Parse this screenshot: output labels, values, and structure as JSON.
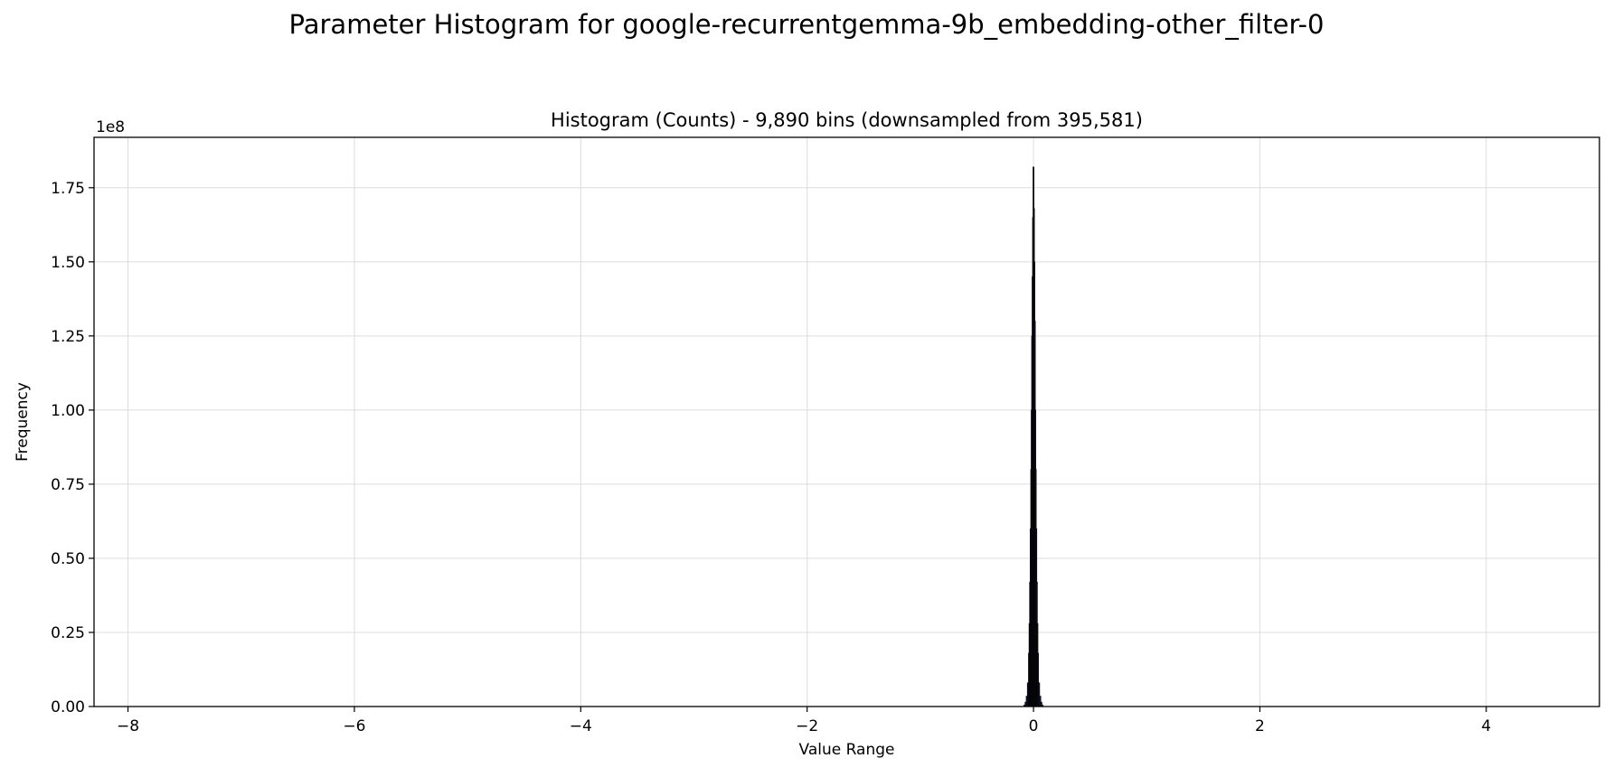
{
  "figure": {
    "title": "Parameter Histogram for google-recurrentgemma-9b_embedding-other_filter-0"
  },
  "chart_data": {
    "type": "bar",
    "title": "Histogram (Counts) - 9,890 bins (downsampled from 395,581)",
    "xlabel": "Value Range",
    "ylabel": "Frequency",
    "y_multiplier_label": "1e8",
    "xlim": [
      -8.3,
      5.0
    ],
    "ylim": [
      0,
      192000000
    ],
    "x_ticks": [
      -8,
      -6,
      -4,
      -2,
      0,
      2,
      4
    ],
    "x_tick_labels": [
      "−8",
      "−6",
      "−4",
      "−2",
      "0",
      "2",
      "4"
    ],
    "y_ticks": [
      0,
      25000000,
      50000000,
      75000000,
      100000000,
      125000000,
      150000000,
      175000000
    ],
    "y_tick_labels": [
      "0.00",
      "0.25",
      "0.50",
      "0.75",
      "1.00",
      "1.25",
      "1.50",
      "1.75"
    ],
    "grid": true,
    "bar_color": "#1a1a3a",
    "edge_color": "#000000",
    "bin_width": 0.004,
    "x": [
      -0.08,
      -0.07,
      -0.06,
      -0.05,
      -0.04,
      -0.035,
      -0.03,
      -0.025,
      -0.02,
      -0.016,
      -0.012,
      -0.008,
      -0.004,
      0.0,
      0.004,
      0.008,
      0.012,
      0.016,
      0.02,
      0.025,
      0.03,
      0.035,
      0.04,
      0.05,
      0.06,
      0.07,
      0.08
    ],
    "values": [
      500000,
      1500000,
      3500000,
      8000000,
      18000000,
      28000000,
      42000000,
      60000000,
      80000000,
      100000000,
      125000000,
      145000000,
      165000000,
      182000000,
      168000000,
      150000000,
      130000000,
      100000000,
      80000000,
      60000000,
      42000000,
      28000000,
      18000000,
      8000000,
      3500000,
      1500000,
      500000
    ]
  }
}
